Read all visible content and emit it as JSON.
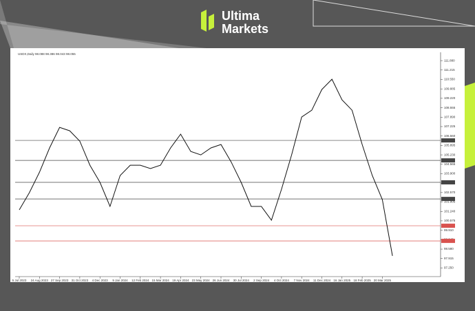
{
  "brand": {
    "line1": "Ultima",
    "line2": "Markets"
  },
  "chart_data": {
    "type": "line",
    "title": "USDX,Daily  98.088 98.386 98.043 98.055",
    "color": "#111111",
    "categories": [
      "5 Jul 2023",
      null,
      "24 Aug 2023",
      null,
      "27 Sep 2023",
      null,
      "31 Oct 2023",
      null,
      "4 Dec 2023",
      null,
      "9 Jan 2024",
      null,
      "12 Feb 2024",
      null,
      "15 Mar 2024",
      null,
      "19 Apr 2024",
      null,
      "23 May 2024",
      null,
      "26 Jun 2024",
      null,
      "30 Jul 2024",
      null,
      "2 Sep 2024",
      null,
      "4 Oct 2024",
      null,
      "7 Nov 2024",
      null,
      "11 Dec 2024",
      null,
      "16 Jan 2025",
      null,
      "18 Feb 2025",
      null,
      "20 Mar 2025",
      null
    ],
    "values": [
      101.35,
      102.56,
      104.0,
      105.72,
      107.17,
      106.93,
      106.2,
      104.5,
      103.29,
      101.59,
      103.77,
      104.5,
      104.5,
      104.26,
      104.5,
      105.72,
      106.69,
      105.47,
      105.23,
      105.72,
      105.96,
      104.74,
      103.29,
      101.59,
      101.59,
      100.62,
      102.8,
      105.23,
      107.9,
      108.38,
      109.84,
      110.57,
      109.11,
      108.38,
      105.96,
      103.77,
      102.07,
      98.1
    ],
    "ylim": [
      96.64,
      112.37
    ],
    "yticks": [
      {
        "value": 111.88,
        "label": "111.880"
      },
      {
        "value": 111.215,
        "label": "111.215"
      },
      {
        "value": 110.55,
        "label": "110.550"
      },
      {
        "value": 109.885,
        "label": "109.885"
      },
      {
        "value": 109.22,
        "label": "109.220"
      },
      {
        "value": 108.555,
        "label": "108.555"
      },
      {
        "value": 107.89,
        "label": "107.890"
      },
      {
        "value": 107.225,
        "label": "107.225"
      },
      {
        "value": 106.56,
        "label": "106.560"
      },
      {
        "value": 105.895,
        "label": "105.895"
      },
      {
        "value": 105.23,
        "label": "105.230"
      },
      {
        "value": 104.565,
        "label": "104.565"
      },
      {
        "value": 103.9,
        "label": "103.900"
      },
      {
        "value": 103.235,
        "label": "103.235"
      },
      {
        "value": 102.57,
        "label": "102.570"
      },
      {
        "value": 101.905,
        "label": "101.905"
      },
      {
        "value": 101.24,
        "label": "101.240"
      },
      {
        "value": 100.575,
        "label": "100.575"
      },
      {
        "value": 99.91,
        "label": "99.910"
      },
      {
        "value": 99.245,
        "label": "99.245"
      },
      {
        "value": 98.58,
        "label": "98.580"
      },
      {
        "value": 97.915,
        "label": "97.915"
      },
      {
        "value": 97.25,
        "label": "97.250"
      }
    ],
    "hlines": [
      {
        "value": 106.25,
        "color": "#444444"
      },
      {
        "value": 104.84,
        "color": "#444444"
      },
      {
        "value": 103.29,
        "color": "#444444"
      },
      {
        "value": 102.12,
        "color": "#444444"
      },
      {
        "value": 100.23,
        "color": "#d9534f"
      },
      {
        "value": 99.16,
        "color": "#d9534f"
      }
    ]
  }
}
